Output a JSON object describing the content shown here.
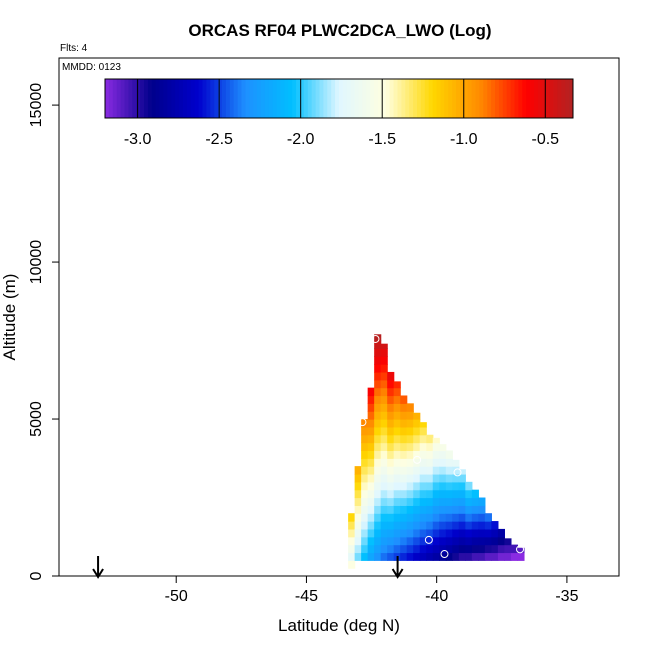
{
  "chart_data": {
    "type": "heatmap",
    "title": "ORCAS RF04 PLWC2DCA_LWO (Log)",
    "flights_note": "Flts: 4",
    "date_note": "MMDD: 0123",
    "xlabel": "Latitude (deg N)",
    "ylabel": "Altitude (m)",
    "xlim": [
      -54.5,
      -33
    ],
    "ylim": [
      0,
      16500
    ],
    "xticks": [
      -50,
      -45,
      -40,
      -35
    ],
    "yticks": [
      0,
      5000,
      10000,
      15000
    ],
    "grid": false,
    "colorbar": {
      "placement": "top-inside",
      "range": [
        -3.2,
        -0.33
      ],
      "ticks": [
        -3.0,
        -2.5,
        -2.0,
        -1.5,
        -1.0,
        -0.5
      ],
      "tick_labels": [
        "-3.0",
        "-2.5",
        "-2.0",
        "-1.5",
        "-1.0",
        "-0.5"
      ],
      "colors": [
        "#8a2be2",
        "#00008b",
        "#0000cd",
        "#1e90ff",
        "#00bfff",
        "#e0f7ff",
        "#ffffe0",
        "#ffd700",
        "#ff8c00",
        "#ff0000",
        "#b22222"
      ]
    },
    "cell_size": {
      "lat": 0.25,
      "alt": 250
    },
    "columns": [
      {
        "lat": -43.4,
        "alt_min": 250,
        "alt_max": 500,
        "value_min": -1.5,
        "value_max": -1.5
      },
      {
        "lat": -43.4,
        "alt_min": 500,
        "alt_max": 2000,
        "value_min": -1.7,
        "value_max": -1.2
      },
      {
        "lat": -43.15,
        "alt_min": 500,
        "alt_max": 3600,
        "value_min": -1.9,
        "value_max": -1.05
      },
      {
        "lat": -42.9,
        "alt_min": 500,
        "alt_max": 5000,
        "value_min": -2.05,
        "value_max": -0.9
      },
      {
        "lat": -42.65,
        "alt_min": 500,
        "alt_max": 6000,
        "value_min": -2.2,
        "value_max": -0.6
      },
      {
        "lat": -42.4,
        "alt_min": 500,
        "alt_max": 7700,
        "value_min": -2.3,
        "value_max": -0.35
      },
      {
        "lat": -42.15,
        "alt_min": 500,
        "alt_max": 7400,
        "value_min": -2.4,
        "value_max": -0.45
      },
      {
        "lat": -41.9,
        "alt_min": 500,
        "alt_max": 6500,
        "value_min": -2.45,
        "value_max": -0.55
      },
      {
        "lat": -41.65,
        "alt_min": 500,
        "alt_max": 6200,
        "value_min": -2.5,
        "value_max": -0.7
      },
      {
        "lat": -41.4,
        "alt_min": 500,
        "alt_max": 5800,
        "value_min": -2.55,
        "value_max": -0.8
      },
      {
        "lat": -41.15,
        "alt_min": 500,
        "alt_max": 5500,
        "value_min": -2.6,
        "value_max": -0.9
      },
      {
        "lat": -40.9,
        "alt_min": 500,
        "alt_max": 5200,
        "value_min": -2.65,
        "value_max": -1.05
      },
      {
        "lat": -40.65,
        "alt_min": 500,
        "alt_max": 4900,
        "value_min": -2.7,
        "value_max": -1.2
      },
      {
        "lat": -40.4,
        "alt_min": 500,
        "alt_max": 4600,
        "value_min": -2.75,
        "value_max": -1.35
      },
      {
        "lat": -40.15,
        "alt_min": 500,
        "alt_max": 4400,
        "value_min": -2.8,
        "value_max": -1.45
      },
      {
        "lat": -39.9,
        "alt_min": 500,
        "alt_max": 4200,
        "value_min": -2.85,
        "value_max": -1.55
      },
      {
        "lat": -39.65,
        "alt_min": 500,
        "alt_max": 4000,
        "value_min": -2.9,
        "value_max": -1.6
      },
      {
        "lat": -39.4,
        "alt_min": 500,
        "alt_max": 3700,
        "value_min": -2.95,
        "value_max": -1.7
      },
      {
        "lat": -39.15,
        "alt_min": 500,
        "alt_max": 3400,
        "value_min": -3.0,
        "value_max": -1.8
      },
      {
        "lat": -38.9,
        "alt_min": 500,
        "alt_max": 3100,
        "value_min": -3.0,
        "value_max": -1.9
      },
      {
        "lat": -38.65,
        "alt_min": 500,
        "alt_max": 2800,
        "value_min": -3.05,
        "value_max": -2.05
      },
      {
        "lat": -38.4,
        "alt_min": 500,
        "alt_max": 2500,
        "value_min": -3.05,
        "value_max": -2.2
      },
      {
        "lat": -38.15,
        "alt_min": 500,
        "alt_max": 2100,
        "value_min": -3.1,
        "value_max": -2.4
      },
      {
        "lat": -37.9,
        "alt_min": 500,
        "alt_max": 1800,
        "value_min": -3.1,
        "value_max": -2.6
      },
      {
        "lat": -37.65,
        "alt_min": 500,
        "alt_max": 1500,
        "value_min": -3.15,
        "value_max": -2.8
      },
      {
        "lat": -37.4,
        "alt_min": 500,
        "alt_max": 1200,
        "value_min": -3.15,
        "value_max": -2.95
      },
      {
        "lat": -37.15,
        "alt_min": 500,
        "alt_max": 1000,
        "value_min": -3.2,
        "value_max": -3.05
      },
      {
        "lat": -36.9,
        "alt_min": 500,
        "alt_max": 900,
        "value_min": -3.2,
        "value_max": -3.1
      }
    ],
    "markers": [
      {
        "lat": -42.35,
        "alt": 7550
      },
      {
        "lat": -41.3,
        "alt": 6350
      },
      {
        "lat": -42.85,
        "alt": 4900
      },
      {
        "lat": -40.75,
        "alt": 3700
      },
      {
        "lat": -39.2,
        "alt": 3300
      },
      {
        "lat": -40.3,
        "alt": 1150
      },
      {
        "lat": -39.7,
        "alt": 700
      },
      {
        "lat": -36.8,
        "alt": 850
      }
    ],
    "arrows": [
      {
        "lat": -53.0
      },
      {
        "lat": -41.5
      }
    ]
  }
}
